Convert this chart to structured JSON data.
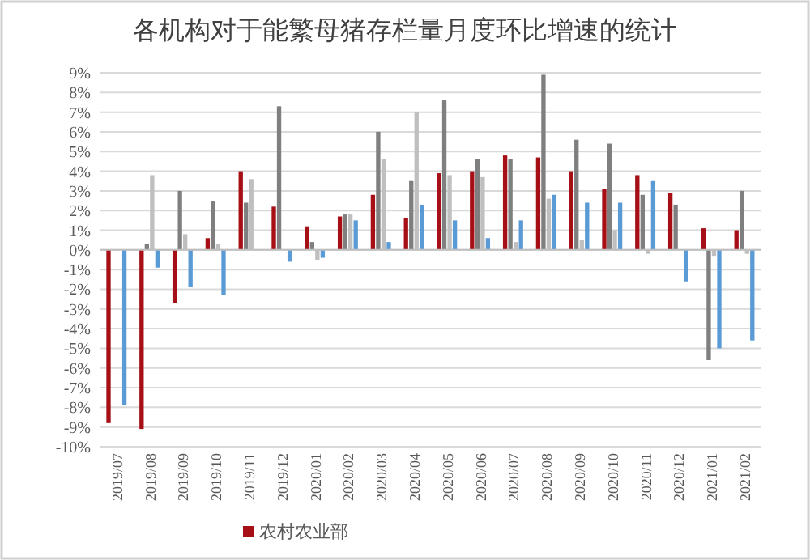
{
  "chart_data": {
    "type": "bar",
    "title": "各机构对于能繁母猪存栏量月度环比增速的统计",
    "categories": [
      "2019/07",
      "2019/08",
      "2019/09",
      "2019/10",
      "2019/11",
      "2019/12",
      "2020/01",
      "2020/02",
      "2020/03",
      "2020/04",
      "2020/05",
      "2020/06",
      "2020/07",
      "2020/08",
      "2020/09",
      "2020/10",
      "2020/11",
      "2020/12",
      "2021/01",
      "2021/02"
    ],
    "series": [
      {
        "name": "农村农业部",
        "color": "#a50f15",
        "values": [
          -8.8,
          -9.1,
          -2.7,
          0.6,
          4.0,
          2.2,
          1.2,
          1.7,
          2.8,
          1.6,
          3.9,
          4.0,
          4.8,
          4.7,
          4.0,
          3.1,
          3.8,
          2.9,
          1.1,
          1.0
        ]
      },
      {
        "color": "#7f7f7f",
        "values": [
          null,
          0.3,
          3.0,
          2.5,
          2.4,
          7.3,
          0.4,
          1.8,
          6.0,
          3.5,
          7.6,
          4.6,
          4.6,
          8.9,
          5.6,
          5.4,
          2.8,
          2.3,
          -5.6,
          3.0
        ]
      },
      {
        "color": "#bfbfbf",
        "values": [
          null,
          3.8,
          0.8,
          0.3,
          3.6,
          0.0,
          -0.5,
          1.8,
          4.6,
          7.0,
          3.8,
          3.7,
          0.4,
          2.6,
          0.5,
          1.0,
          -0.2,
          null,
          -0.3,
          -0.2
        ]
      },
      {
        "color": "#5b9bd5",
        "values": [
          -7.9,
          -0.9,
          -1.9,
          -2.3,
          null,
          -0.6,
          -0.4,
          1.5,
          0.4,
          2.3,
          1.5,
          0.6,
          1.5,
          2.8,
          2.4,
          2.4,
          3.5,
          -1.6,
          -5.0,
          -4.6
        ]
      }
    ],
    "ylim": [
      -10,
      9
    ],
    "yticks": [
      {
        "value": -10,
        "label": "-10%"
      },
      {
        "value": -9,
        "label": "-9%"
      },
      {
        "value": -8,
        "label": "-8%"
      },
      {
        "value": -7,
        "label": "-7%"
      },
      {
        "value": -6,
        "label": "-6%"
      },
      {
        "value": -5,
        "label": "-5%"
      },
      {
        "value": -4,
        "label": "-4%"
      },
      {
        "value": -3,
        "label": "-3%"
      },
      {
        "value": -2,
        "label": "-2%"
      },
      {
        "value": -1,
        "label": "-1%"
      },
      {
        "value": 0,
        "label": "0%"
      },
      {
        "value": 1,
        "label": "1%"
      },
      {
        "value": 2,
        "label": "2%"
      },
      {
        "value": 3,
        "label": "3%"
      },
      {
        "value": 4,
        "label": "4%"
      },
      {
        "value": 5,
        "label": "5%"
      },
      {
        "value": 6,
        "label": "6%"
      },
      {
        "value": 7,
        "label": "7%"
      },
      {
        "value": 8,
        "label": "8%"
      },
      {
        "value": 9,
        "label": "9%"
      }
    ],
    "grid": "y",
    "legend": "bottom"
  }
}
